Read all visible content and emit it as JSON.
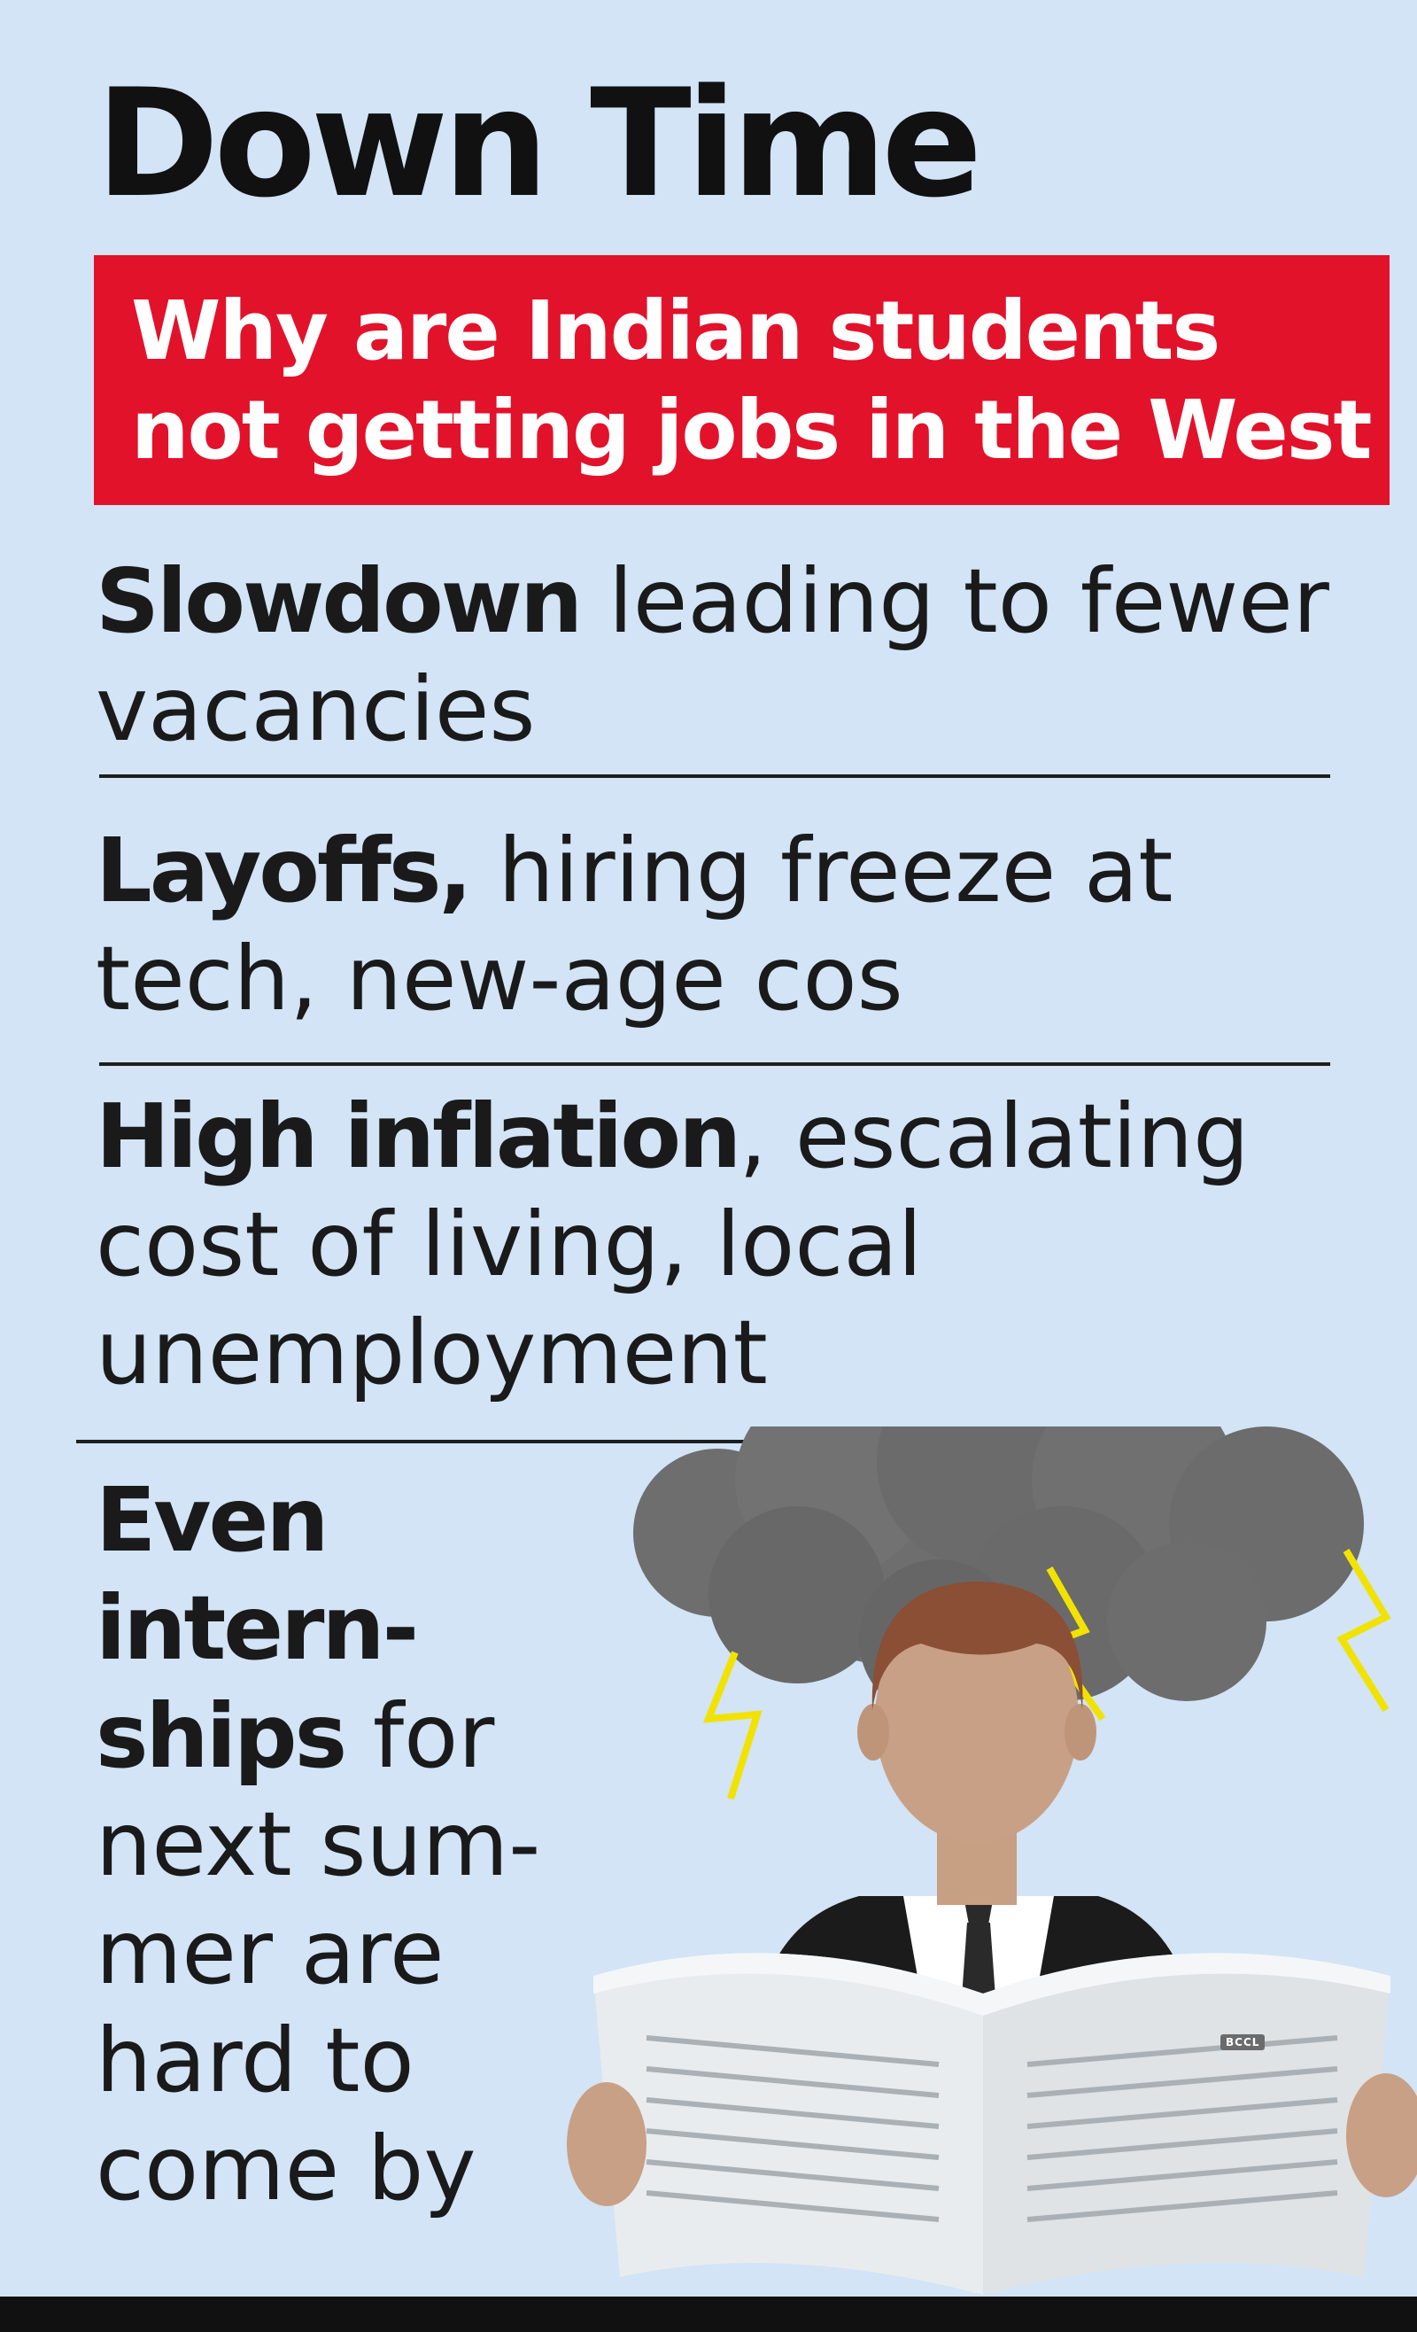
{
  "title": "Down Time",
  "subtitle": {
    "line1": "Why are Indian students",
    "line2": "not getting jobs in the West"
  },
  "reasons": [
    {
      "bold": "Slowdown",
      "rest_line1": " leading to fewer",
      "rest_line2": "vacancies"
    },
    {
      "bold": "Layoffs,",
      "rest_line1": " hiring freeze at",
      "rest_line2": "tech, new-age cos"
    },
    {
      "bold": "High inflation",
      "rest_line1": ", escalating",
      "rest_line2": "cost of living, local",
      "rest_line3": "unemployment"
    }
  ],
  "internships": {
    "bold_line1": "Even",
    "bold_line2": "intern-",
    "bold_line3": "ships",
    "rest_line3": " for",
    "line4": "next sum-",
    "line5": "mer are",
    "line6": "hard to",
    "line7": "come by"
  },
  "watermark": "BCCL",
  "colors": {
    "background": "#d2e4f6",
    "accent_red": "#e2122b",
    "text": "#111111",
    "cloud": "#6e6e6e",
    "lightning": "#f2e200"
  },
  "icons": [
    "storm-cloud-icon",
    "lightning-icon",
    "person-reading-newspaper-icon"
  ]
}
